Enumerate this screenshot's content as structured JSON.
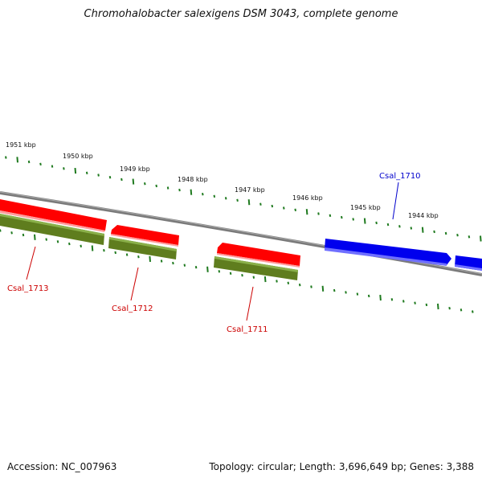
{
  "title": "Chromohalobacter salexigens DSM 3043, complete genome",
  "accession": "Accession: NC_007963",
  "topology": "Topology: circular; Length: 3,696,649 bp; Genes: 3,388",
  "colors": {
    "backbone": "#7a7a7a",
    "ticks": "#1f7a1f",
    "gene_reverse": "#ff0000",
    "gene_forward": "#0000ee",
    "cds": "#6b8e23",
    "label_reverse": "#cc0000",
    "label_forward": "#0000cc"
  },
  "scale_labels": [
    "1951 kbp",
    "1950 kbp",
    "1949 kbp",
    "1948 kbp",
    "1947 kbp",
    "1946 kbp",
    "1945 kbp",
    "1944 kbp"
  ],
  "genes": [
    {
      "name": "Csal_1713",
      "strand": "reverse"
    },
    {
      "name": "Csal_1712",
      "strand": "reverse"
    },
    {
      "name": "Csal_1711",
      "strand": "reverse"
    },
    {
      "name": "Csal_1710",
      "strand": "forward"
    }
  ]
}
